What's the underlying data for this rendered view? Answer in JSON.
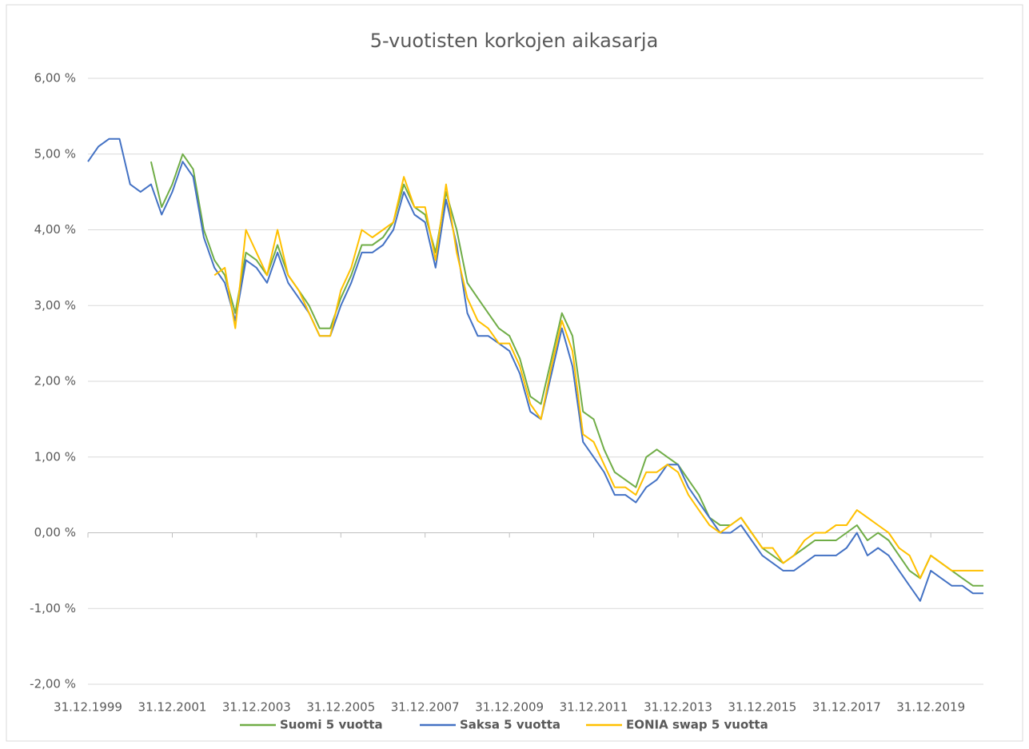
{
  "chart_data": {
    "type": "line",
    "title": "5-vuotisten korkojen aikasarja",
    "x": [
      "31.12.1999",
      "31.03.2000",
      "30.06.2000",
      "30.09.2000",
      "31.12.2000",
      "31.03.2001",
      "30.06.2001",
      "30.09.2001",
      "31.12.2001",
      "31.03.2002",
      "30.06.2002",
      "30.09.2002",
      "31.12.2002",
      "31.03.2003",
      "30.06.2003",
      "30.09.2003",
      "31.12.2003",
      "31.03.2004",
      "30.06.2004",
      "30.09.2004",
      "31.12.2004",
      "31.03.2005",
      "30.06.2005",
      "30.09.2005",
      "31.12.2005",
      "31.03.2006",
      "30.06.2006",
      "30.09.2006",
      "31.12.2006",
      "31.03.2007",
      "30.06.2007",
      "30.09.2007",
      "31.12.2007",
      "31.03.2008",
      "30.06.2008",
      "30.09.2008",
      "31.12.2008",
      "31.03.2009",
      "30.06.2009",
      "30.09.2009",
      "31.12.2009",
      "31.03.2010",
      "30.06.2010",
      "30.09.2010",
      "31.12.2010",
      "31.03.2011",
      "30.06.2011",
      "30.09.2011",
      "31.12.2011",
      "31.03.2012",
      "30.06.2012",
      "30.09.2012",
      "31.12.2012",
      "31.03.2013",
      "30.06.2013",
      "30.09.2013",
      "31.12.2013",
      "31.03.2014",
      "30.06.2014",
      "30.09.2014",
      "31.12.2014",
      "31.03.2015",
      "30.06.2015",
      "30.09.2015",
      "31.12.2015",
      "31.03.2016",
      "30.06.2016",
      "30.09.2016",
      "31.12.2016",
      "31.03.2017",
      "30.06.2017",
      "30.09.2017",
      "31.12.2017",
      "31.03.2018",
      "30.06.2018",
      "30.09.2018",
      "31.12.2018",
      "31.03.2019",
      "30.06.2019",
      "30.09.2019",
      "31.12.2019",
      "31.03.2020",
      "30.06.2020",
      "30.09.2020",
      "31.12.2020",
      "31.03.2021"
    ],
    "series": [
      {
        "name": "Suomi 5 vuotta",
        "color": "#70ad47",
        "values": [
          null,
          null,
          null,
          null,
          null,
          null,
          4.9,
          4.3,
          4.6,
          5.0,
          4.8,
          4.0,
          3.6,
          3.4,
          2.9,
          3.7,
          3.6,
          3.4,
          3.8,
          3.4,
          3.2,
          3.0,
          2.7,
          2.7,
          3.1,
          3.4,
          3.8,
          3.8,
          3.9,
          4.1,
          4.6,
          4.3,
          4.2,
          3.7,
          4.5,
          4.0,
          3.3,
          3.1,
          2.9,
          2.7,
          2.6,
          2.3,
          1.8,
          1.7,
          2.3,
          2.9,
          2.6,
          1.6,
          1.5,
          1.1,
          0.8,
          0.7,
          0.6,
          1.0,
          1.1,
          1.0,
          0.9,
          0.7,
          0.5,
          0.2,
          0.1,
          0.1,
          0.2,
          0.0,
          -0.2,
          -0.3,
          -0.4,
          -0.3,
          -0.2,
          -0.1,
          -0.1,
          -0.1,
          0.0,
          0.1,
          -0.1,
          0.0,
          -0.1,
          -0.3,
          -0.5,
          -0.6,
          -0.3,
          -0.4,
          -0.5,
          -0.6,
          -0.7,
          -0.7
        ]
      },
      {
        "name": "Saksa 5 vuotta",
        "color": "#4472c4",
        "values": [
          4.9,
          5.1,
          5.2,
          5.2,
          4.6,
          4.5,
          4.6,
          4.2,
          4.5,
          4.9,
          4.7,
          3.9,
          3.5,
          3.3,
          2.8,
          3.6,
          3.5,
          3.3,
          3.7,
          3.3,
          3.1,
          2.9,
          2.6,
          2.6,
          3.0,
          3.3,
          3.7,
          3.7,
          3.8,
          4.0,
          4.5,
          4.2,
          4.1,
          3.5,
          4.4,
          3.8,
          2.9,
          2.6,
          2.6,
          2.5,
          2.4,
          2.1,
          1.6,
          1.5,
          2.1,
          2.7,
          2.2,
          1.2,
          1.0,
          0.8,
          0.5,
          0.5,
          0.4,
          0.6,
          0.7,
          0.9,
          0.9,
          0.6,
          0.4,
          0.2,
          0.0,
          0.0,
          0.1,
          -0.1,
          -0.3,
          -0.4,
          -0.5,
          -0.5,
          -0.4,
          -0.3,
          -0.3,
          -0.3,
          -0.2,
          0.0,
          -0.3,
          -0.2,
          -0.3,
          -0.5,
          -0.7,
          -0.9,
          -0.5,
          -0.6,
          -0.7,
          -0.7,
          -0.8,
          -0.8
        ]
      },
      {
        "name": "EONIA swap 5 vuotta",
        "color": "#ffc000",
        "values": [
          null,
          null,
          null,
          null,
          null,
          null,
          null,
          null,
          null,
          null,
          null,
          null,
          3.4,
          3.5,
          2.7,
          4.0,
          3.7,
          3.4,
          4.0,
          3.4,
          3.2,
          2.9,
          2.6,
          2.6,
          3.2,
          3.5,
          4.0,
          3.9,
          4.0,
          4.1,
          4.7,
          4.3,
          4.3,
          3.6,
          4.6,
          3.7,
          3.1,
          2.8,
          2.7,
          2.5,
          2.5,
          2.2,
          1.7,
          1.5,
          2.2,
          2.8,
          2.4,
          1.3,
          1.2,
          0.9,
          0.6,
          0.6,
          0.5,
          0.8,
          0.8,
          0.9,
          0.8,
          0.5,
          0.3,
          0.1,
          0.0,
          0.1,
          0.2,
          0.0,
          -0.2,
          -0.2,
          -0.4,
          -0.3,
          -0.1,
          0.0,
          0.0,
          0.1,
          0.1,
          0.3,
          0.2,
          0.1,
          0.0,
          -0.2,
          -0.3,
          -0.6,
          -0.3,
          -0.4,
          -0.5,
          -0.5,
          -0.5,
          -0.5
        ]
      }
    ],
    "xlim": [
      "31.12.1999",
      "31.03.2021"
    ],
    "xticks": [
      "31.12.1999",
      "31.12.2001",
      "31.12.2003",
      "31.12.2005",
      "31.12.2007",
      "31.12.2009",
      "31.12.2011",
      "31.12.2013",
      "31.12.2015",
      "31.12.2017",
      "31.12.2019"
    ],
    "ylim": [
      -2,
      6
    ],
    "yticks": [
      {
        "value": -2,
        "label": "-2,00 %"
      },
      {
        "value": -1,
        "label": "-1,00 %"
      },
      {
        "value": 0,
        "label": "0,00 %"
      },
      {
        "value": 1,
        "label": "1,00 %"
      },
      {
        "value": 2,
        "label": "2,00 %"
      },
      {
        "value": 3,
        "label": "3,00 %"
      },
      {
        "value": 4,
        "label": "4,00 %"
      },
      {
        "value": 5,
        "label": "5,00 %"
      },
      {
        "value": 6,
        "label": "6,00 %"
      }
    ],
    "grid": true,
    "legend": "bottom"
  }
}
